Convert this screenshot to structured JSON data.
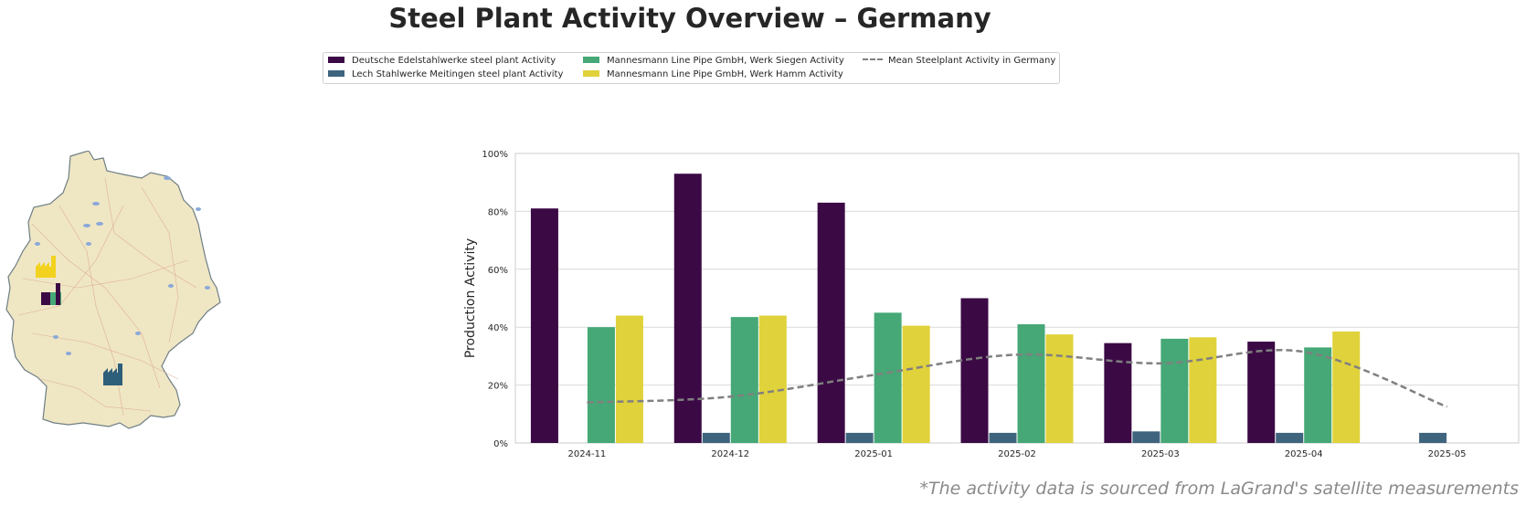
{
  "title": "Steel Plant Activity Overview – Germany",
  "footnote": "*The activity data is sourced from LaGrand's satellite measurements",
  "legend": {
    "items": [
      {
        "label": "Deutsche Edelstahlwerke steel plant Activity",
        "color": "#3b0a45"
      },
      {
        "label": "Lech Stahlwerke Meitingen steel plant Activity",
        "color": "#3f647e"
      },
      {
        "label": "Mannesmann Line Pipe GmbH, Werk Siegen Activity",
        "color": "#45a876"
      },
      {
        "label": "Mannesmann Line Pipe GmbH, Werk Hamm Activity",
        "color": "#e0d23a"
      }
    ],
    "mean_label": "Mean Steelplant Activity in Germany",
    "mean_color": "#808080",
    "placement": "top-center"
  },
  "map": {
    "fill": "#efe6c4",
    "border": "#6f7f85",
    "icons": [
      {
        "name": "factory-icon-hamm",
        "color": "#f2d21e"
      },
      {
        "name": "factory-icon-siegen-edelstahl",
        "color": "#3b0a45",
        "accent": "#45a876"
      },
      {
        "name": "factory-icon-meitingen",
        "color": "#2e5f7a"
      }
    ]
  },
  "chart_data": {
    "type": "bar",
    "categories": [
      "2024-11",
      "2024-12",
      "2025-01",
      "2025-02",
      "2025-03",
      "2025-04",
      "2025-05"
    ],
    "series": [
      {
        "name": "Deutsche Edelstahlwerke steel plant Activity",
        "values": [
          81,
          93,
          83,
          50,
          34.5,
          35,
          null
        ]
      },
      {
        "name": "Lech Stahlwerke Meitingen steel plant Activity",
        "values": [
          null,
          3.5,
          3.5,
          3.5,
          4,
          3.5,
          3.5
        ]
      },
      {
        "name": "Mannesmann Line Pipe GmbH, Werk Siegen Activity",
        "values": [
          40,
          43.5,
          45,
          41,
          36,
          33,
          null
        ]
      },
      {
        "name": "Mannesmann Line Pipe GmbH, Werk Hamm Activity",
        "values": [
          44,
          44,
          40.5,
          37.5,
          36.5,
          38.5,
          null
        ]
      }
    ],
    "mean_line": {
      "name": "Mean Steelplant Activity in Germany",
      "values": [
        14,
        16,
        23.5,
        30.5,
        27.5,
        31.5,
        12.5
      ]
    },
    "ylabel": "Production Activity",
    "xlabel": "",
    "ylim": [
      0,
      100
    ],
    "yticks": [
      0,
      20,
      40,
      60,
      80,
      100
    ],
    "ytick_labels": [
      "0%",
      "20%",
      "40%",
      "60%",
      "80%",
      "100%"
    ],
    "grid": "horizontal"
  }
}
